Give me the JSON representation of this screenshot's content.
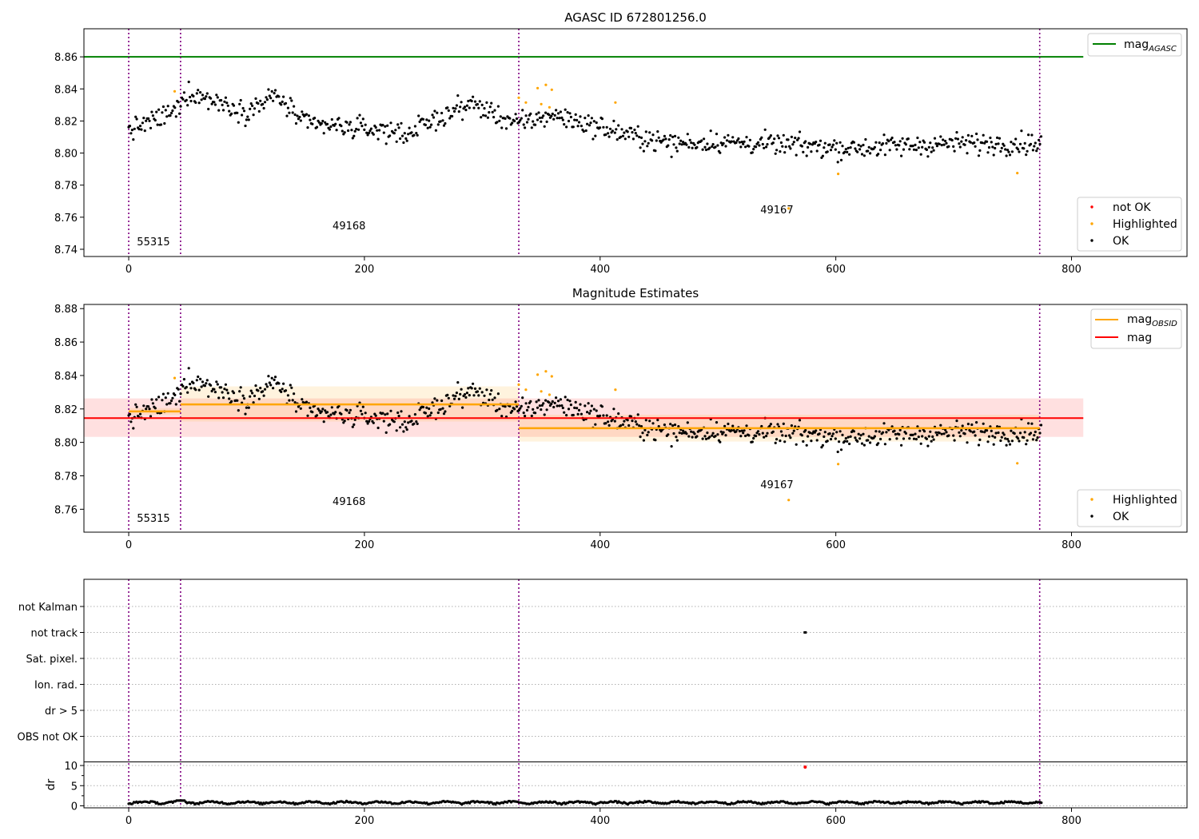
{
  "chart_data": [
    {
      "type": "scatter",
      "title": "AGASC ID 672801256.0",
      "xlim": [
        -38,
        898
      ],
      "ylim": [
        8.7355,
        8.8775
      ],
      "x_ticks": [
        0,
        200,
        400,
        600,
        800
      ],
      "y_ticks": [
        8.74,
        8.76,
        8.78,
        8.8,
        8.82,
        8.84,
        8.86
      ],
      "obsid_boundaries": [
        0,
        44,
        331,
        773
      ],
      "obsid_labels": [
        {
          "text": "55315",
          "x": 21,
          "y": 8.7425
        },
        {
          "text": "49168",
          "x": 187,
          "y": 8.7525
        },
        {
          "text": "49167",
          "x": 550,
          "y": 8.7625
        }
      ],
      "mag_agasc": {
        "value": 8.86,
        "x_range": [
          -38,
          810
        ]
      },
      "legend_lines": [
        {
          "name": "mag_AGASC",
          "color": "#008000"
        }
      ],
      "legend_points": [
        {
          "name": "not OK",
          "color": "#ff0000"
        },
        {
          "name": "Highlighted",
          "color": "#ffa500"
        },
        {
          "name": "OK",
          "color": "#000000"
        }
      ],
      "highlighted_points": [
        [
          39,
          8.8385
        ],
        [
          331,
          8.8345
        ],
        [
          337,
          8.8315
        ],
        [
          347,
          8.8405
        ],
        [
          354,
          8.8425
        ],
        [
          359,
          8.8395
        ],
        [
          350,
          8.8305
        ],
        [
          357,
          8.8285
        ],
        [
          413,
          8.8315
        ],
        [
          560,
          8.7655
        ],
        [
          602,
          8.787
        ],
        [
          754,
          8.7875
        ]
      ],
      "ok_trend": [
        [
          0,
          8.814
        ],
        [
          40,
          8.826
        ],
        [
          50,
          8.838
        ],
        [
          100,
          8.826
        ],
        [
          125,
          8.836
        ],
        [
          150,
          8.818
        ],
        [
          220,
          8.814
        ],
        [
          235,
          8.812
        ],
        [
          290,
          8.831
        ],
        [
          330,
          8.818
        ],
        [
          360,
          8.824
        ],
        [
          420,
          8.812
        ],
        [
          460,
          8.806
        ],
        [
          500,
          8.807
        ],
        [
          560,
          8.805
        ],
        [
          610,
          8.803
        ],
        [
          700,
          8.806
        ],
        [
          775,
          8.806
        ]
      ],
      "ok_point_count": 790
    },
    {
      "type": "scatter",
      "title": "Magnitude Estimates",
      "xlim": [
        -38,
        898
      ],
      "ylim": [
        8.7463,
        8.8825
      ],
      "x_ticks": [
        0,
        200,
        400,
        600,
        800
      ],
      "y_ticks": [
        8.76,
        8.78,
        8.8,
        8.82,
        8.84,
        8.86,
        8.88
      ],
      "obsid_boundaries": [
        0,
        44,
        331,
        773
      ],
      "obsid_labels": [
        {
          "text": "55315",
          "x": 21,
          "y": 8.7525
        },
        {
          "text": "49168",
          "x": 187,
          "y": 8.7625
        },
        {
          "text": "49167",
          "x": 550,
          "y": 8.7725
        }
      ],
      "mag_obsid": [
        {
          "x_range": [
            0,
            44
          ],
          "value": 8.8185,
          "band": [
            8.8165,
            8.8205
          ]
        },
        {
          "x_range": [
            44,
            331
          ],
          "value": 8.8227,
          "band": [
            8.8125,
            8.8335
          ]
        },
        {
          "x_range": [
            331,
            773
          ],
          "value": 8.8085,
          "band": [
            8.8005,
            8.8165
          ]
        }
      ],
      "mag": {
        "value": 8.8145,
        "band": [
          8.8033,
          8.8263
        ],
        "x_range": [
          -38,
          810
        ]
      },
      "legend_lines": [
        {
          "name": "mag_OBSID",
          "color": "#ffa500"
        },
        {
          "name": "mag",
          "color": "#ff0000"
        }
      ],
      "legend_points": [
        {
          "name": "Highlighted",
          "color": "#ffa500"
        },
        {
          "name": "OK",
          "color": "#000000"
        }
      ]
    },
    {
      "type": "scatter",
      "xlim": [
        -38,
        898
      ],
      "flag_labels": [
        "not Kalman",
        "not track",
        "Sat. pixel.",
        "Ion. rad.",
        "dr > 5",
        "OBS not OK"
      ],
      "flag_points": [
        {
          "flag": "not track",
          "x": 574
        }
      ],
      "dr_ylabel": "dr",
      "dr_ylim": [
        -0.5,
        10.8
      ],
      "dr_ticks": [
        0,
        5,
        10
      ],
      "dr_points": [
        {
          "x": 574,
          "y": 9.6,
          "color": "#ff0000"
        }
      ],
      "x_ticks": [
        0,
        200,
        400,
        600,
        800
      ]
    }
  ],
  "panel_titles": {
    "top": "AGASC ID 672801256.0",
    "middle": "Magnitude Estimates"
  },
  "legend_labels": {
    "mag_agasc_base": "mag",
    "mag_agasc_sub": "AGASC",
    "not_ok": "not OK",
    "highlighted": "Highlighted",
    "ok": "OK",
    "mag_obsid_base": "mag",
    "mag_obsid_sub": "OBSID",
    "mag": "mag"
  },
  "colors": {
    "ok": "#000000",
    "highlighted": "#ffa500",
    "not_ok": "#ff0000",
    "mag_agasc": "#008000",
    "boundary": "#800080",
    "mag_band": "#ff000022",
    "obsid_band": "#ffa50022"
  }
}
